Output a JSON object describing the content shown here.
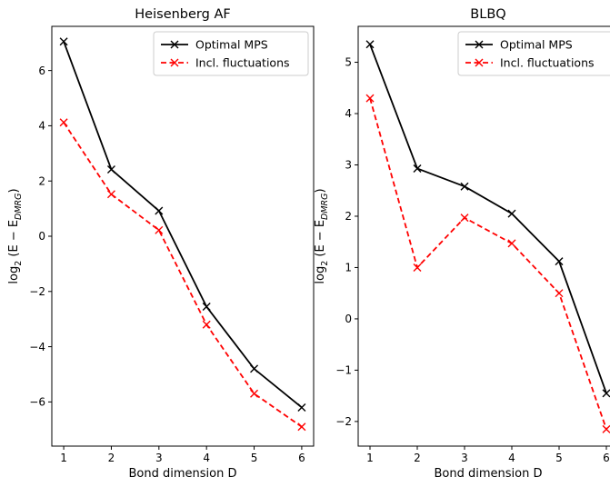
{
  "chart_data": [
    {
      "type": "line",
      "title": "Heisenberg AF",
      "xlabel": "Bond dimension D",
      "ylabel_parts": {
        "main": "log",
        "sub": "2",
        "mid": " (E − E",
        "sub2": "DMRG",
        "end": ")"
      },
      "x": [
        1,
        2,
        3,
        4,
        5,
        6
      ],
      "xlim": [
        0.75,
        6.25
      ],
      "ylim": [
        -7.6,
        7.6
      ],
      "xticks": [
        "1",
        "2",
        "3",
        "4",
        "5",
        "6"
      ],
      "ytick_values": [
        -6,
        -4,
        -2,
        0,
        2,
        4,
        6
      ],
      "ytick_labels": [
        "−6",
        "−4",
        "−2",
        "0",
        "2",
        "4",
        "6"
      ],
      "grid": false,
      "legend_position": "top-right",
      "series": [
        {
          "name": "Optimal MPS",
          "style": "solid",
          "color": "#000000",
          "marker": "x",
          "values": [
            7.05,
            2.42,
            0.92,
            -2.55,
            -4.8,
            -6.2
          ]
        },
        {
          "name": "Incl. fluctuations",
          "style": "dashed",
          "color": "#ff0000",
          "marker": "x",
          "values": [
            4.12,
            1.52,
            0.22,
            -3.2,
            -5.7,
            -6.9
          ]
        }
      ]
    },
    {
      "type": "line",
      "title": "BLBQ",
      "xlabel": "Bond dimension D",
      "ylabel_parts": {
        "main": "log",
        "sub": "2",
        "mid": " (E − E",
        "sub2": "DMRG",
        "end": ")"
      },
      "x": [
        1,
        2,
        3,
        4,
        5,
        6
      ],
      "xlim": [
        0.75,
        6.25
      ],
      "ylim": [
        -2.48,
        5.7
      ],
      "xticks": [
        "1",
        "2",
        "3",
        "4",
        "5",
        "6"
      ],
      "ytick_values": [
        -2,
        -1,
        0,
        1,
        2,
        3,
        4,
        5
      ],
      "ytick_labels": [
        "−2",
        "−1",
        "0",
        "1",
        "2",
        "3",
        "4",
        "5"
      ],
      "grid": false,
      "legend_position": "top-right",
      "series": [
        {
          "name": "Optimal MPS",
          "style": "solid",
          "color": "#000000",
          "marker": "x",
          "values": [
            5.35,
            2.93,
            2.58,
            2.05,
            1.12,
            -1.45
          ]
        },
        {
          "name": "Incl. fluctuations",
          "style": "dashed",
          "color": "#ff0000",
          "marker": "x",
          "values": [
            4.3,
            1.0,
            1.97,
            1.47,
            0.5,
            -2.15
          ]
        }
      ]
    }
  ]
}
